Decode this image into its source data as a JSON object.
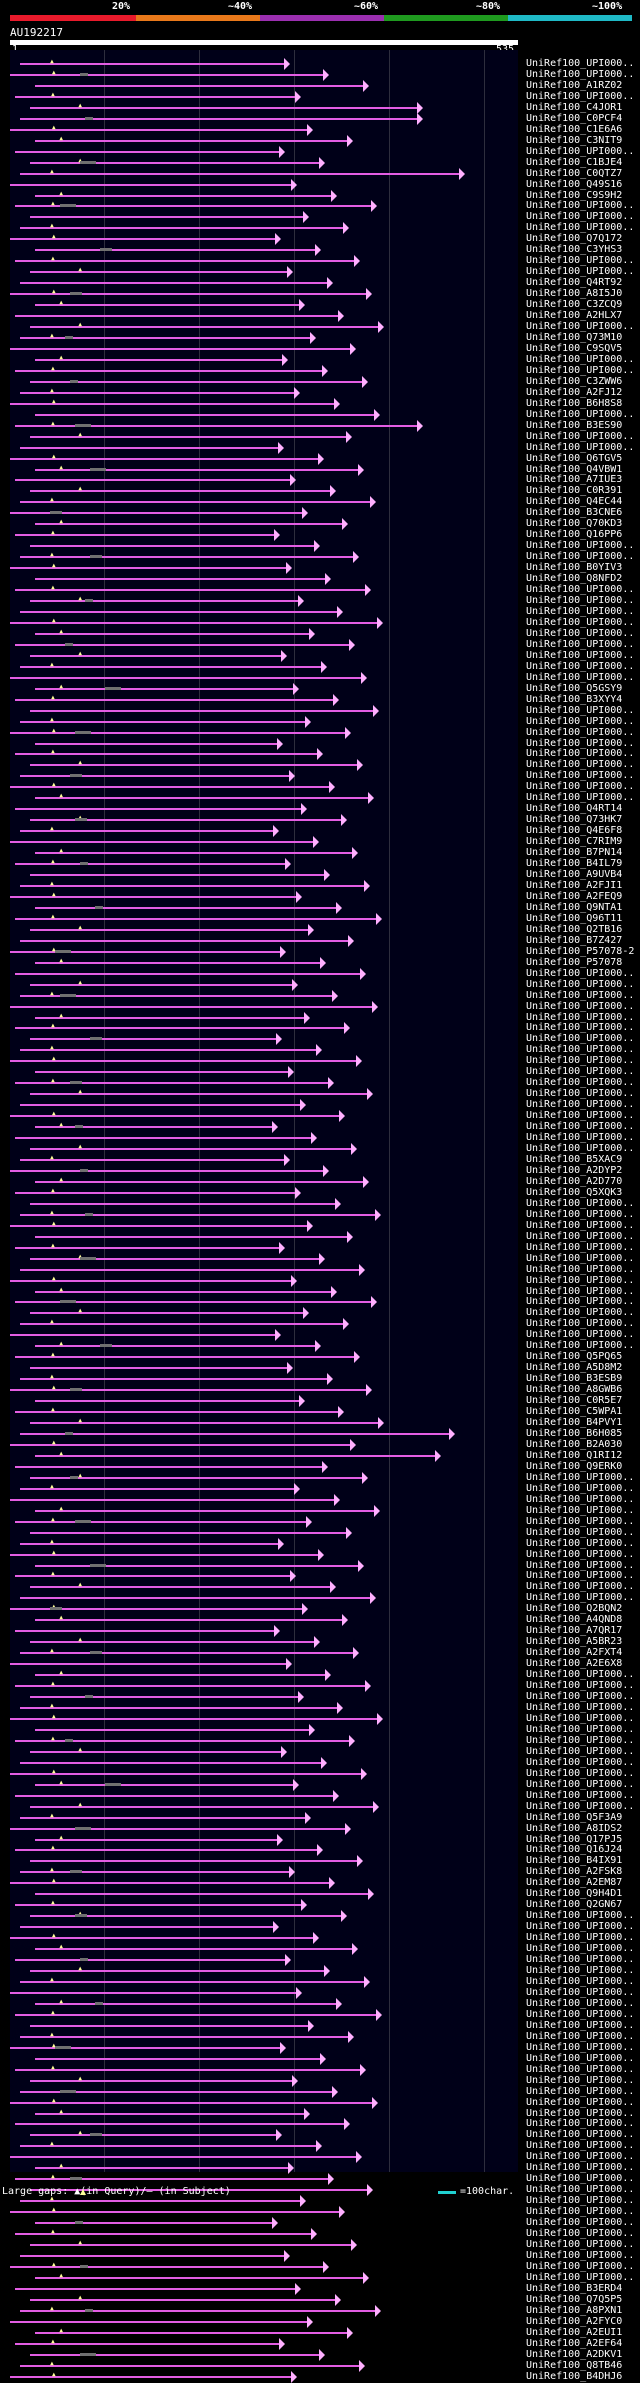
{
  "scale": {
    "labels": [
      "20%",
      "~40%",
      "~60%",
      "~80%",
      "~100%"
    ],
    "colors": [
      "#e81a2b",
      "#e8781a",
      "#9b2fb0",
      "#1f9a1f",
      "#1fb9c6"
    ]
  },
  "query": {
    "title": "AU192217",
    "start": "1",
    "end": "535"
  },
  "names": [
    "UniRef100_UPI000..",
    "UniRef100_UPI000..",
    "UniRef100_A1RZ02",
    "UniRef100_UPI000..",
    "UniRef100_C4JOR1",
    "UniRef100_C0PCF4",
    "UniRef100_C1E6A6",
    "UniRef100_C3NIT9",
    "UniRef100_UPI000..",
    "UniRef100_C1BJE4",
    "UniRef100_C0QTZ7",
    "UniRef100_Q49S16",
    "UniRef100_C9S9H2",
    "UniRef100_UPI000..",
    "UniRef100_UPI000..",
    "UniRef100_UPI000..",
    "UniRef100_Q7Q172",
    "UniRef100_C3YHS3",
    "UniRef100_UPI000..",
    "UniRef100_UPI000..",
    "UniRef100_Q4RT92",
    "UniRef100_A8I5J0",
    "UniRef100_C3ZCQ9",
    "UniRef100_A2HLX7",
    "UniRef100_UPI000..",
    "UniRef100_Q73M10",
    "UniRef100_C9SQV5",
    "UniRef100_UPI000..",
    "UniRef100_UPI000..",
    "UniRef100_C3ZWW6",
    "UniRef100_A2FJ12",
    "UniRef100_B6H8S8",
    "UniRef100_UPI000..",
    "UniRef100_B3ES90",
    "UniRef100_UPI000..",
    "UniRef100_UPI000..",
    "UniRef100_Q6TGV5",
    "UniRef100_Q4VBW1",
    "UniRef100_A7IUE3",
    "UniRef100_C0R391",
    "UniRef100_Q4EC44",
    "UniRef100_B3CNE6",
    "UniRef100_Q70KD3",
    "UniRef100_Q16PP6",
    "UniRef100_UPI000..",
    "UniRef100_UPI000..",
    "UniRef100_B0YIV3",
    "UniRef100_Q8NFD2",
    "UniRef100_UPI000..",
    "UniRef100_UPI000..",
    "UniRef100_UPI000..",
    "UniRef100_UPI000..",
    "UniRef100_UPI000..",
    "UniRef100_UPI000..",
    "UniRef100_UPI000..",
    "UniRef100_UPI000..",
    "UniRef100_UPI000..",
    "UniRef100_Q5GSY9",
    "UniRef100_B3XYY4",
    "UniRef100_UPI000..",
    "UniRef100_UPI000..",
    "UniRef100_UPI000..",
    "UniRef100_UPI000..",
    "UniRef100_UPI000..",
    "UniRef100_UPI000..",
    "UniRef100_UPI000..",
    "UniRef100_UPI000..",
    "UniRef100_UPI000..",
    "UniRef100_Q4RT14",
    "UniRef100_Q73HK7",
    "UniRef100_Q4E6F8",
    "UniRef100_C7RIM9",
    "UniRef100_B7PN14",
    "UniRef100_B4IL79",
    "UniRef100_A9UVB4",
    "UniRef100_A2FJI1",
    "UniRef100_A2FEQ9",
    "UniRef100_Q9NTA1",
    "UniRef100_Q96T11",
    "UniRef100_Q2TB16",
    "UniRef100_B7Z427",
    "UniRef100_P57078-2",
    "UniRef100_P57078",
    "UniRef100_UPI000..",
    "UniRef100_UPI000..",
    "UniRef100_UPI000..",
    "UniRef100_UPI000..",
    "UniRef100_UPI000..",
    "UniRef100_UPI000..",
    "UniRef100_UPI000..",
    "UniRef100_UPI000..",
    "UniRef100_UPI000..",
    "UniRef100_UPI000..",
    "UniRef100_UPI000..",
    "UniRef100_UPI000..",
    "UniRef100_UPI000..",
    "UniRef100_UPI000..",
    "UniRef100_UPI000..",
    "UniRef100_UPI000..",
    "UniRef100_UPI000..",
    "UniRef100_B5XAC9",
    "UniRef100_A2DYP2",
    "UniRef100_A2D770",
    "UniRef100_Q5XQK3",
    "UniRef100_UPI000..",
    "UniRef100_UPI000..",
    "UniRef100_UPI000..",
    "UniRef100_UPI000..",
    "UniRef100_UPI000..",
    "UniRef100_UPI000..",
    "UniRef100_UPI000..",
    "UniRef100_UPI000..",
    "UniRef100_UPI000..",
    "UniRef100_UPI000..",
    "UniRef100_UPI000..",
    "UniRef100_UPI000..",
    "UniRef100_UPI000..",
    "UniRef100_UPI000..",
    "UniRef100_Q5PQ65",
    "UniRef100_A5D8M2",
    "UniRef100_B3ESB9",
    "UniRef100_A8GWB6",
    "UniRef100_C0R5E7",
    "UniRef100_C5WPA1",
    "UniRef100_B4PVY1",
    "UniRef100_B6H085",
    "UniRef100_B2A030",
    "UniRef100_Q1RI12",
    "UniRef100_Q9ERK0",
    "UniRef100_UPI000..",
    "UniRef100_UPI000..",
    "UniRef100_UPI000..",
    "UniRef100_UPI000..",
    "UniRef100_UPI000..",
    "UniRef100_UPI000..",
    "UniRef100_UPI000..",
    "UniRef100_UPI000..",
    "UniRef100_UPI000..",
    "UniRef100_UPI000..",
    "UniRef100_UPI000..",
    "UniRef100_UPI000..",
    "UniRef100_Q2BQN2",
    "UniRef100_A4QND8",
    "UniRef100_A7QR17",
    "UniRef100_A5BR23",
    "UniRef100_A2FXT4",
    "UniRef100_A2E6X8",
    "UniRef100_UPI000..",
    "UniRef100_UPI000..",
    "UniRef100_UPI000..",
    "UniRef100_UPI000..",
    "UniRef100_UPI000..",
    "UniRef100_UPI000..",
    "UniRef100_UPI000..",
    "UniRef100_UPI000..",
    "UniRef100_UPI000..",
    "UniRef100_UPI000..",
    "UniRef100_UPI000..",
    "UniRef100_UPI000..",
    "UniRef100_UPI000..",
    "UniRef100_Q5F3A9",
    "UniRef100_A8IDS2",
    "UniRef100_Q17PJ5",
    "UniRef100_Q16J24",
    "UniRef100_B4IX91",
    "UniRef100_A2FSK8",
    "UniRef100_A2EM87",
    "UniRef100_Q9H4D1",
    "UniRef100_Q2GN67",
    "UniRef100_UPI000..",
    "UniRef100_UPI000..",
    "UniRef100_UPI000..",
    "UniRef100_UPI000..",
    "UniRef100_UPI000..",
    "UniRef100_UPI000..",
    "UniRef100_UPI000..",
    "UniRef100_UPI000..",
    "UniRef100_UPI000..",
    "UniRef100_UPI000..",
    "UniRef100_UPI000..",
    "UniRef100_UPI000..",
    "UniRef100_UPI000..",
    "UniRef100_UPI000..",
    "UniRef100_UPI000..",
    "UniRef100_UPI000..",
    "UniRef100_UPI000..",
    "UniRef100_UPI000..",
    "UniRef100_UPI000..",
    "UniRef100_UPI000..",
    "UniRef100_UPI000..",
    "UniRef100_UPI000..",
    "UniRef100_UPI000..",
    "UniRef100_UPI000..",
    "UniRef100_UPI000..",
    "UniRef100_UPI000..",
    "UniRef100_UPI000..",
    "UniRef100_UPI000..",
    "UniRef100_UPI000..",
    "UniRef100_UPI000..",
    "UniRef100_UPI000..",
    "UniRef100_UPI000..",
    "UniRef100_UPI000..",
    "UniRef100_UPI000..",
    "UniRef100_B3ERD4",
    "UniRef100_Q7Q5P5",
    "UniRef100_A8PXN1",
    "UniRef100_A2FYC0",
    "UniRef100_A2EUI1",
    "UniRef100_A2EF64",
    "UniRef100_A2DKV1",
    "UniRef100_Q8TB46",
    "UniRef100_B4DHJ6"
  ],
  "legend": {
    "text": "Large gaps: ▲(in Query)/– (in Subject)",
    "scale_text": "=100char."
  }
}
